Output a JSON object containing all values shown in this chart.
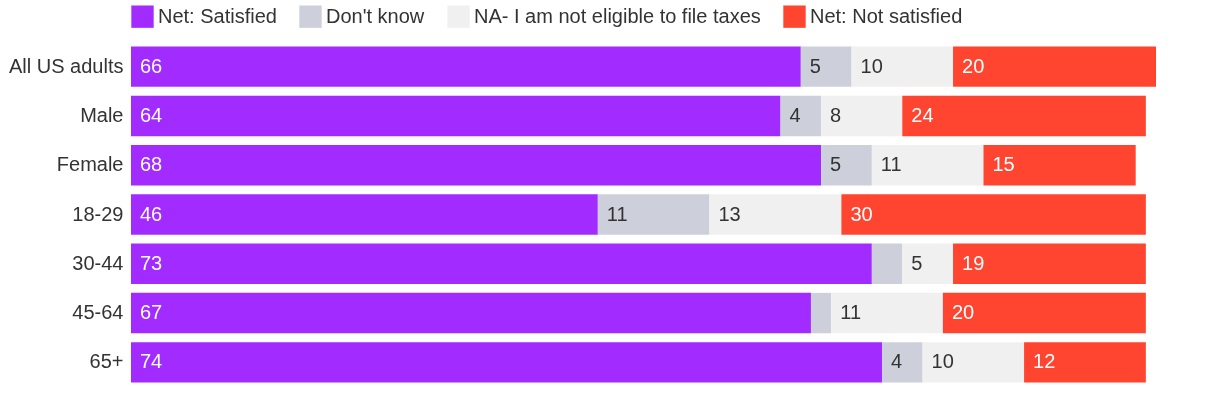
{
  "chart_data": {
    "type": "bar",
    "orientation": "horizontal",
    "stacked": true,
    "categories": [
      "All US adults",
      "Male",
      "Female",
      "18-29",
      "30-44",
      "45-64",
      "65+"
    ],
    "series": [
      {
        "name": "Net: Satisfied",
        "color": "#a22bff",
        "values": [
          66,
          64,
          68,
          46,
          73,
          67,
          74
        ],
        "value_labels": [
          "66",
          "64",
          "68",
          "46",
          "73",
          "67",
          "74"
        ]
      },
      {
        "name": "Don't know",
        "color": "#cdd0da",
        "values": [
          5,
          4,
          5,
          11,
          3,
          2,
          4
        ],
        "value_labels": [
          "5",
          "4",
          "5",
          "11",
          null,
          null,
          "4"
        ]
      },
      {
        "name": "NA- I am not eligible to file taxes",
        "color": "#f0f0f0",
        "values": [
          10,
          8,
          11,
          13,
          5,
          11,
          10
        ],
        "value_labels": [
          "10",
          "8",
          "11",
          "13",
          "5",
          "11",
          "10"
        ]
      },
      {
        "name": "Net: Not satisfied",
        "color": "#ff4530",
        "values": [
          20,
          24,
          15,
          30,
          19,
          20,
          12
        ],
        "value_labels": [
          "20",
          "24",
          "15",
          "30",
          "19",
          "20",
          "12"
        ]
      }
    ],
    "xlim": [
      0,
      101
    ],
    "tick_labels": "y",
    "legend": "top"
  }
}
